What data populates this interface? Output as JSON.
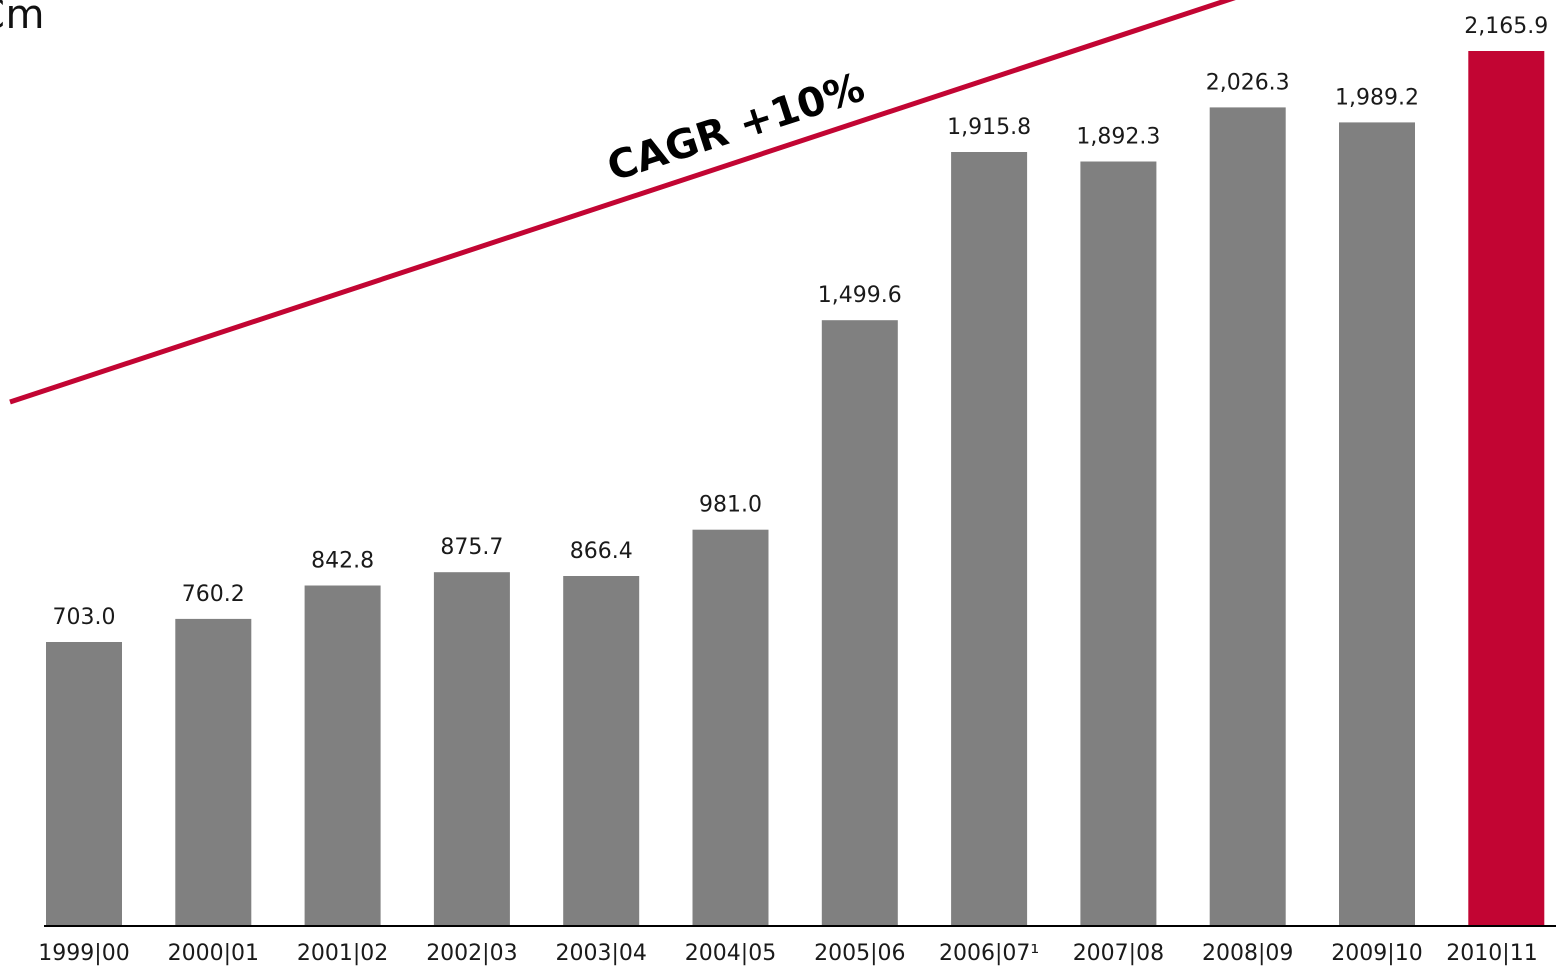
{
  "chart_data": {
    "type": "bar",
    "unit_label": "€m",
    "categories": [
      "1999|00",
      "2000|01",
      "2001|02",
      "2002|03",
      "2003|04",
      "2004|05",
      "2005|06",
      "2006|07¹",
      "2007|08",
      "2008|09",
      "2009|10",
      "2010|11"
    ],
    "values": [
      703.0,
      760.2,
      842.8,
      875.7,
      866.4,
      981.0,
      1499.6,
      1915.8,
      1892.3,
      2026.3,
      1989.2,
      2165.9
    ],
    "value_labels": [
      "703.0",
      "760.2",
      "842.8",
      "875.7",
      "866.4",
      "981.0",
      "1,499.6",
      "1,915.8",
      "1,892.3",
      "2,026.3",
      "1,989.2",
      "2,165.9"
    ],
    "ylim": [
      0,
      2165.9
    ],
    "grid": false,
    "annotation": {
      "text": "CAGR +10%"
    },
    "colors": {
      "default_bar": "#808080",
      "highlight_bar": "#c20533",
      "trend_line": "#c20533"
    },
    "highlight_index": 11
  }
}
